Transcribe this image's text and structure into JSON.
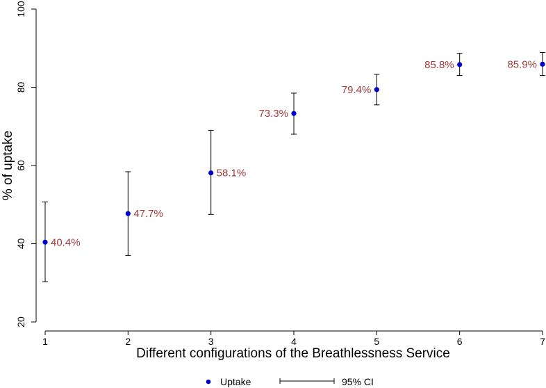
{
  "chart_data": {
    "type": "scatter",
    "xlabel": "Different configurations of the Breathlessness Service",
    "ylabel": "% of uptake",
    "xlim": [
      1,
      7
    ],
    "ylim": [
      20,
      100
    ],
    "x_ticks": [
      "1",
      "2",
      "3",
      "4",
      "5",
      "6",
      "7"
    ],
    "y_ticks": [
      "20",
      "40",
      "60",
      "80",
      "100"
    ],
    "grid": false,
    "legend_position": "bottom",
    "colors": {
      "point": "#0000cc",
      "label": "#a03a3a",
      "error_bar": "#000000"
    },
    "series": [
      {
        "name": "Uptake",
        "x": [
          1,
          2,
          3,
          4,
          5,
          6,
          7
        ],
        "y": [
          40.4,
          47.7,
          58.1,
          73.3,
          79.4,
          85.8,
          85.9
        ],
        "ci_low": [
          30.3,
          37.0,
          47.5,
          68.0,
          75.5,
          83.0,
          83.0
        ],
        "ci_high": [
          50.7,
          58.4,
          69.0,
          78.5,
          83.3,
          88.7,
          88.9
        ],
        "labels": [
          "40.4%",
          "47.7%",
          "58.1%",
          "73.3%",
          "79.4%",
          "85.8%",
          "85.9%"
        ],
        "label_side": [
          "right",
          "right",
          "right",
          "left",
          "left",
          "left",
          "left"
        ]
      }
    ],
    "legend": {
      "point_label": "Uptake",
      "ci_label": "95% CI"
    }
  }
}
